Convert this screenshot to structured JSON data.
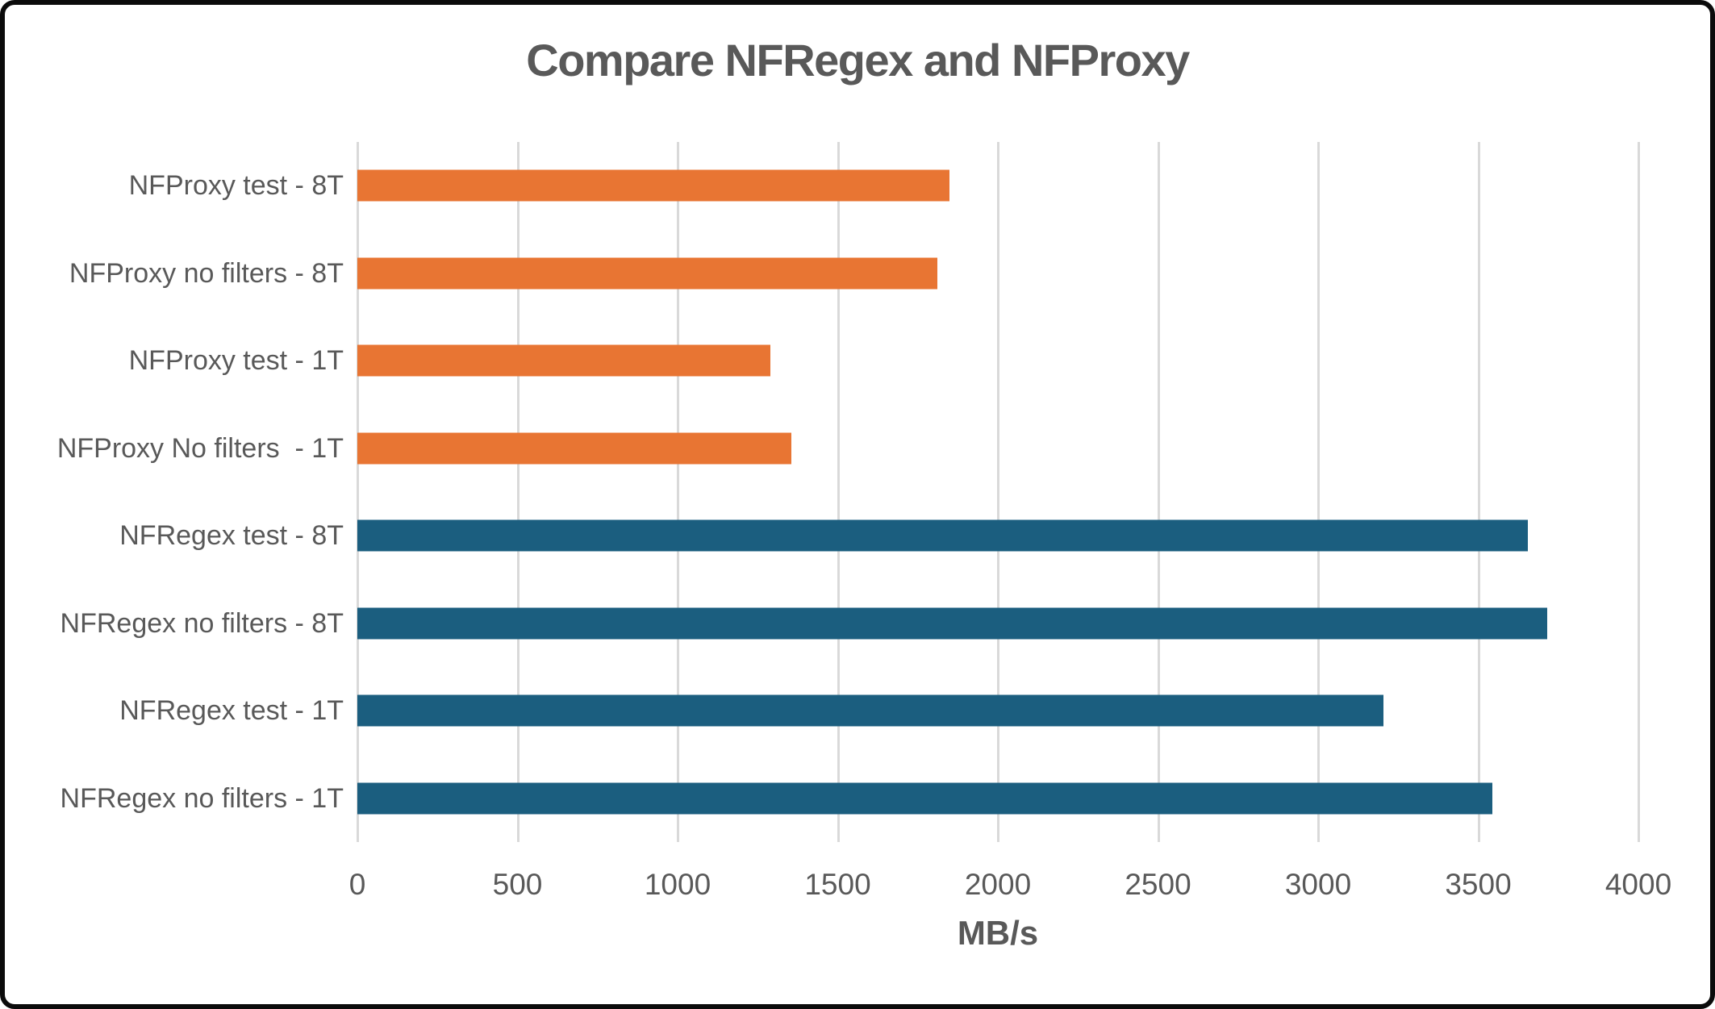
{
  "frame": {
    "background": "#ffffff",
    "border_color": "#0b0b0b"
  },
  "chart_data": {
    "type": "bar",
    "orientation": "horizontal",
    "title": "Compare NFRegex and NFProxy",
    "xlabel": "MB/s",
    "ylabel": "",
    "categories": [
      "NFProxy test - 8T",
      "NFProxy no filters - 8T",
      "NFProxy test - 1T",
      "NFProxy No filters  - 1T",
      "NFRegex test - 8T",
      "NFRegex no filters - 8T",
      "NFRegex test - 1T",
      "NFRegex no filters - 1T"
    ],
    "values": [
      1850,
      1810,
      1290,
      1355,
      3655,
      3715,
      3205,
      3545
    ],
    "bar_colors": [
      "#E87533",
      "#E87533",
      "#E87533",
      "#E87533",
      "#1B5E7F",
      "#1B5E7F",
      "#1B5E7F",
      "#1B5E7F"
    ],
    "series_colors": {
      "NFProxy": "#E87533",
      "NFRegex": "#1B5E7F"
    },
    "xlim": [
      0,
      4000
    ],
    "xticks": [
      0,
      500,
      1000,
      1500,
      2000,
      2500,
      3000,
      3500,
      4000
    ],
    "grid": true,
    "legend": "none",
    "title_color": "#595959",
    "text_color": "#595959",
    "gridline_color": "#D9D9D9"
  }
}
